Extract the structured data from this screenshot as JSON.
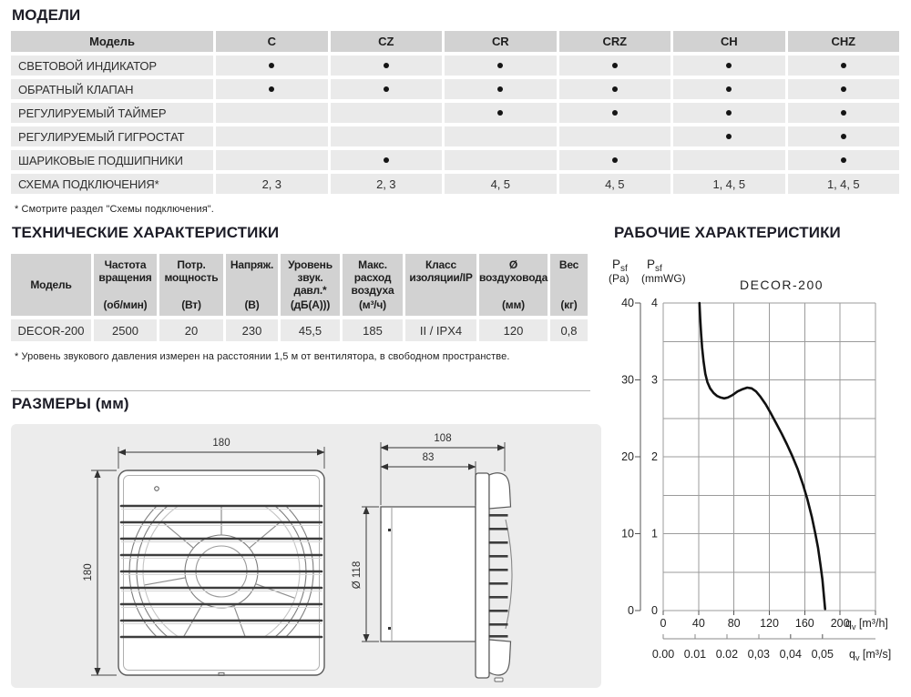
{
  "sections": {
    "models_title": "МОДЕЛИ",
    "tech_title": "ТЕХНИЧЕСКИЕ ХАРАКТЕРИСТИКИ",
    "dims_title": "РАЗМЕРЫ (мм)",
    "perf_title": "РАБОЧИЕ ХАРАКТЕРИСТИКИ"
  },
  "colors": {
    "table_header_bg": "#d2d2d2",
    "table_row_bg": "#eaeaea",
    "dims_box_bg": "#ececec",
    "grid_line": "#9b9b9b",
    "curve": "#111111",
    "title_text": "#1d1d27"
  },
  "models_table": {
    "header_label": "Модель",
    "models": [
      "C",
      "CZ",
      "CR",
      "CRZ",
      "CH",
      "CHZ"
    ],
    "rows": [
      {
        "label": "СВЕТОВОЙ ИНДИКАТОР",
        "values": [
          "•",
          "•",
          "•",
          "•",
          "•",
          "•"
        ]
      },
      {
        "label": "ОБРАТНЫЙ КЛАПАН",
        "values": [
          "•",
          "•",
          "•",
          "•",
          "•",
          "•"
        ]
      },
      {
        "label": "РЕГУЛИРУЕМЫЙ ТАЙМЕР",
        "values": [
          "",
          "",
          "•",
          "•",
          "•",
          "•"
        ]
      },
      {
        "label": "РЕГУЛИРУЕМЫЙ ГИГРОСТАТ",
        "values": [
          "",
          "",
          "",
          "",
          "•",
          "•"
        ]
      },
      {
        "label": "ШАРИКОВЫЕ ПОДШИПНИКИ",
        "values": [
          "",
          "•",
          "",
          "•",
          "",
          "•"
        ]
      },
      {
        "label": "СХЕМА ПОДКЛЮЧЕНИЯ*",
        "values": [
          "2, 3",
          "2, 3",
          "4, 5",
          "4, 5",
          "1, 4, 5",
          "1, 4, 5"
        ]
      }
    ],
    "footnote": "* Смотрите раздел \"Схемы подключения\"."
  },
  "tech_table": {
    "columns": [
      {
        "name": "Модель",
        "unit": ""
      },
      {
        "name": "Частота вращения",
        "unit": "(об/мин)"
      },
      {
        "name": "Потр. мощность",
        "unit": "(Вт)"
      },
      {
        "name": "Напряж.",
        "unit": "(В)"
      },
      {
        "name": "Уровень звук. давл.*",
        "unit": "(дБ(А)))"
      },
      {
        "name": "Макс. расход воздуха",
        "unit": "(м³/ч)"
      },
      {
        "name": "Класс изоляции/IP",
        "unit": ""
      },
      {
        "name": "Ø воздуховода",
        "unit": "(мм)"
      },
      {
        "name": "Вес",
        "unit": "(кг)"
      }
    ],
    "row": [
      "DECOR-200",
      "2500",
      "20",
      "230",
      "45,5",
      "185",
      "II / IPX4",
      "120",
      "0,8"
    ],
    "footnote": "* Уровень звукового давления измерен на расстоянии 1,5 м от вентилятора, в свободном пространстве."
  },
  "dimensions": {
    "front_width": "180",
    "front_height": "180",
    "side_depth_total": "108",
    "side_depth_duct": "83",
    "duct_diameter": "Ø 118"
  },
  "chart_data": {
    "type": "line",
    "title": "DECOR-200",
    "xlim": [
      0,
      240
    ],
    "ylim": [
      0,
      4
    ],
    "grid_step_x": 40,
    "grid_step_y": 0.5,
    "y_axis_pa": {
      "symbol": "P",
      "sub": "sf",
      "unit": "(Pa)",
      "ticks": [
        40,
        30,
        20,
        10,
        0
      ]
    },
    "y_axis_mmwg": {
      "symbol": "P",
      "sub": "sf",
      "unit": "(mmWG)",
      "ticks": [
        4,
        3,
        2,
        1,
        0
      ]
    },
    "x_axis_m3h": {
      "ticks": [
        0,
        40,
        80,
        120,
        160,
        200
      ],
      "label_symbol": "q",
      "label_sub": "v",
      "label_unit": "[m³/h]"
    },
    "x_axis_m3s": {
      "tick_labels": [
        "0.00",
        "0.01",
        "0.02",
        "0,03",
        "0,04",
        "0,05"
      ],
      "tick_step_m3h": 36,
      "label_symbol": "q",
      "label_sub": "v",
      "label_unit": "[m³/s]"
    },
    "curve_points": [
      [
        41,
        4.0
      ],
      [
        41.8,
        3.8
      ],
      [
        42.8,
        3.6
      ],
      [
        44,
        3.42
      ],
      [
        45.6,
        3.24
      ],
      [
        47.6,
        3.08
      ],
      [
        50,
        2.97
      ],
      [
        53,
        2.89
      ],
      [
        57,
        2.83
      ],
      [
        61,
        2.79
      ],
      [
        65,
        2.77
      ],
      [
        69,
        2.76
      ],
      [
        73,
        2.77
      ],
      [
        78,
        2.8
      ],
      [
        84,
        2.85
      ],
      [
        90,
        2.88
      ],
      [
        95,
        2.9
      ],
      [
        100,
        2.89
      ],
      [
        105,
        2.85
      ],
      [
        110,
        2.78
      ],
      [
        116,
        2.68
      ],
      [
        122,
        2.56
      ],
      [
        128,
        2.43
      ],
      [
        134,
        2.3
      ],
      [
        140,
        2.16
      ],
      [
        146,
        2.01
      ],
      [
        152,
        1.84
      ],
      [
        158,
        1.64
      ],
      [
        163,
        1.45
      ],
      [
        168,
        1.22
      ],
      [
        172,
        1.0
      ],
      [
        175,
        0.82
      ],
      [
        178,
        0.58
      ],
      [
        180,
        0.4
      ],
      [
        182,
        0.15
      ],
      [
        183,
        0.02
      ]
    ]
  }
}
